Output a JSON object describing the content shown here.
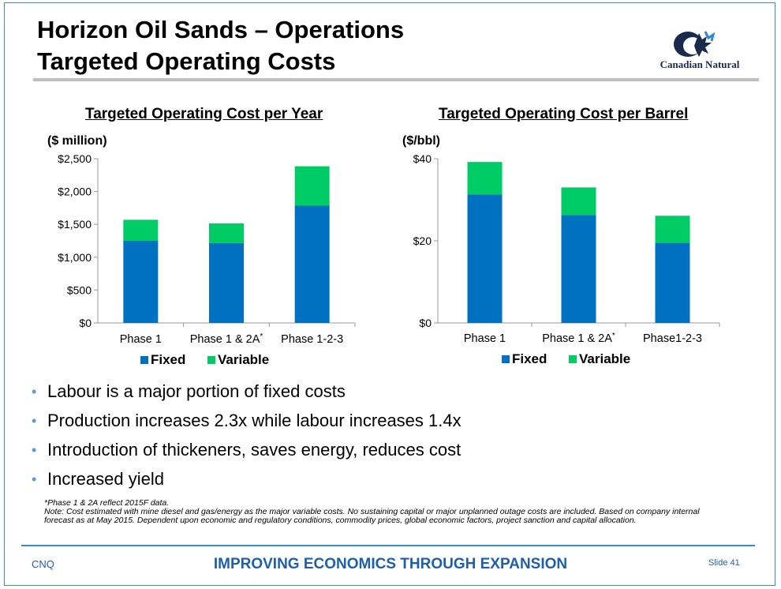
{
  "slide": {
    "title_line1": "Horizon Oil Sands – Operations",
    "title_line2": "Targeted Operating Costs",
    "logo_text": "Canadian Natural"
  },
  "chart_data": [
    {
      "type": "bar",
      "stacked": true,
      "title": "Targeted Operating Cost per Year",
      "unit_label": "($ million)",
      "categories": [
        "Phase 1",
        "Phase 1 & 2A",
        "Phase 1-2-3"
      ],
      "category_marks": [
        "",
        "*",
        ""
      ],
      "series": [
        {
          "name": "Fixed",
          "values": [
            1250,
            1215,
            1785
          ],
          "color": "#0070c0"
        },
        {
          "name": "Variable",
          "values": [
            320,
            300,
            600
          ],
          "color": "#00cc66"
        }
      ],
      "yticks": [
        "$0",
        "$500",
        "$1,000",
        "$1,500",
        "$2,000",
        "$2,500"
      ],
      "ylim": [
        0,
        2500
      ],
      "grid": false,
      "legend": "bottom"
    },
    {
      "type": "bar",
      "stacked": true,
      "title": "Targeted Operating Cost per Barrel",
      "unit_label": "($/bbl)",
      "categories": [
        "Phase 1",
        "Phase 1 & 2A",
        "Phase1-2-3"
      ],
      "category_marks": [
        "",
        "*",
        ""
      ],
      "series": [
        {
          "name": "Fixed",
          "values": [
            31.3,
            26.3,
            19.5
          ],
          "color": "#0070c0"
        },
        {
          "name": "Variable",
          "values": [
            7.9,
            6.7,
            6.6
          ],
          "color": "#00cc66"
        }
      ],
      "yticks": [
        "$0",
        "$20",
        "$40"
      ],
      "ylim": [
        0,
        40
      ],
      "grid": false,
      "legend": "bottom"
    }
  ],
  "bullets": [
    "Labour is a major portion of fixed costs",
    "Production increases 2.3x while labour increases 1.4x",
    "Introduction of thickeners, saves energy, reduces cost",
    "Increased yield"
  ],
  "notes": {
    "line1": "*Phase 1 & 2A reflect 2015F data.",
    "line2": "Note: Cost estimated with mine diesel and gas/energy as the major variable costs. No sustaining capital or major unplanned outage costs are included. Based on company internal forecast as at May 2015. Dependent upon economic and regulatory conditions, commodity prices, global economic factors, project sanction and capital allocation."
  },
  "footer": {
    "left": "CNQ",
    "center": "IMPROVING ECONOMICS THROUGH EXPANSION",
    "right": "Slide 41"
  },
  "colors": {
    "accent": "#1f5fa8",
    "fixed": "#0070c0",
    "variable": "#00cc66"
  }
}
